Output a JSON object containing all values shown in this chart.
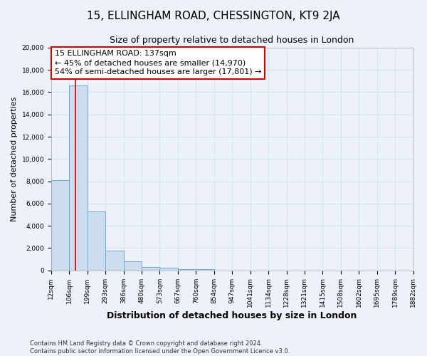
{
  "title": "15, ELLINGHAM ROAD, CHESSINGTON, KT9 2JA",
  "subtitle": "Size of property relative to detached houses in London",
  "xlabel": "Distribution of detached houses by size in London",
  "ylabel": "Number of detached properties",
  "bar_values": [
    8100,
    16600,
    5300,
    1750,
    800,
    300,
    200,
    100,
    100,
    0,
    0,
    0,
    0,
    0,
    0,
    0,
    0,
    0,
    0,
    0
  ],
  "all_bin_edges": [
    12,
    106,
    199,
    293,
    386,
    480,
    573,
    667,
    760,
    854,
    947,
    1041,
    1134,
    1228,
    1321,
    1415,
    1508,
    1602,
    1695,
    1789,
    1882
  ],
  "tick_labels": [
    "12sqm",
    "106sqm",
    "199sqm",
    "293sqm",
    "386sqm",
    "480sqm",
    "573sqm",
    "667sqm",
    "760sqm",
    "854sqm",
    "947sqm",
    "1041sqm",
    "1134sqm",
    "1228sqm",
    "1321sqm",
    "1415sqm",
    "1508sqm",
    "1602sqm",
    "1695sqm",
    "1789sqm",
    "1882sqm"
  ],
  "bar_color": "#ccddf0",
  "bar_edgecolor": "#6aaad4",
  "bg_color": "#edf2fa",
  "grid_color": "#d8e4f0",
  "annotation_box_edgecolor": "#cc0000",
  "annotation_title": "15 ELLINGHAM ROAD: 137sqm",
  "annotation_line1": "← 45% of detached houses are smaller (14,970)",
  "annotation_line2": "54% of semi-detached houses are larger (17,801) →",
  "vline_x": 137,
  "vline_color": "#cc0000",
  "ylim": [
    0,
    20000
  ],
  "yticks": [
    0,
    2000,
    4000,
    6000,
    8000,
    10000,
    12000,
    14000,
    16000,
    18000,
    20000
  ],
  "footer_line1": "Contains HM Land Registry data © Crown copyright and database right 2024.",
  "footer_line2": "Contains public sector information licensed under the Open Government Licence v3.0.",
  "title_fontsize": 11,
  "subtitle_fontsize": 9,
  "xlabel_fontsize": 9,
  "ylabel_fontsize": 8,
  "tick_fontsize": 6.5,
  "annotation_fontsize": 8,
  "footer_fontsize": 6
}
